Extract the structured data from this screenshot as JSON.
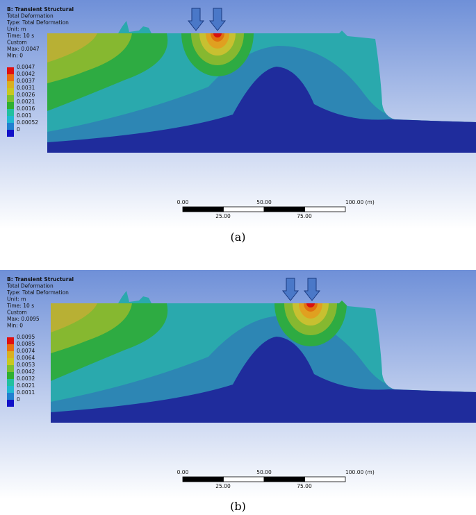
{
  "panels": [
    {
      "header": [
        "B: Transient Structural",
        "Total Deformation",
        "Type: Total Deformation",
        "Unit: m",
        "Time: 10 s",
        "Custom",
        "Max: 0.0047",
        "Min: 0"
      ],
      "legend": [
        "0.0047",
        "0.0042",
        "0.0037",
        "0.0031",
        "0.0026",
        "0.0021",
        "0.0016",
        "0.001",
        "0.00052",
        "0"
      ],
      "scale_top": [
        "0.00",
        "50.00",
        "100.00 (m)"
      ],
      "scale_bottom": [
        "25.00",
        "75.00"
      ],
      "caption": "(a)"
    },
    {
      "header": [
        "B: Transient Structural",
        "Total Deformation",
        "Type: Total Deformation",
        "Unit: m",
        "Time: 10 s",
        "Custom",
        "Max: 0.0095",
        "Min: 0"
      ],
      "legend": [
        "0.0095",
        "0.0085",
        "0.0074",
        "0.0064",
        "0.0053",
        "0.0042",
        "0.0032",
        "0.0021",
        "0.0011",
        "0"
      ],
      "scale_top": [
        "0.00",
        "50.00",
        "100.00 (m)"
      ],
      "scale_bottom": [
        "25.00",
        "75.00"
      ],
      "caption": "(b)"
    }
  ]
}
